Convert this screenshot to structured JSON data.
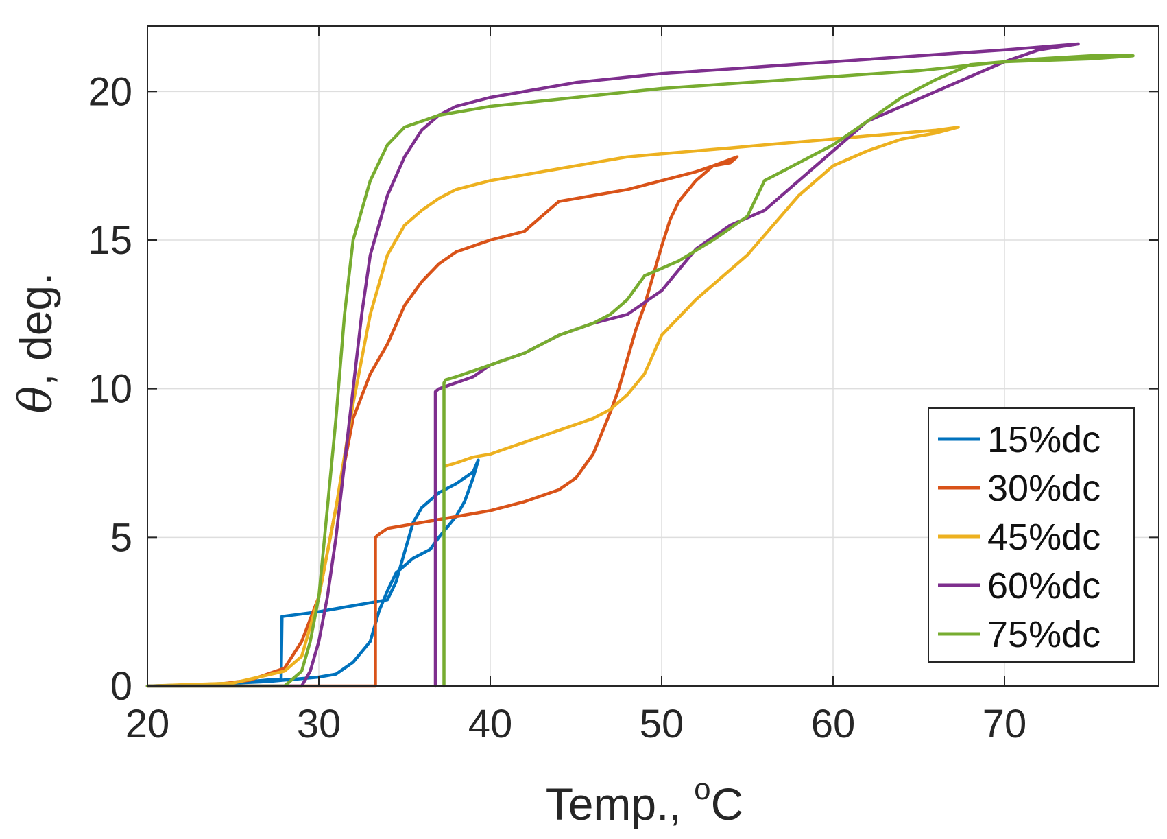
{
  "chart_data": {
    "type": "line",
    "title": "",
    "xlabel": "Temp., ",
    "xlabel_unit_sup": "o",
    "xlabel_unit": "C",
    "ylabel_symbol": "θ",
    "ylabel_rest": ", deg.",
    "xlim": [
      20,
      79
    ],
    "ylim": [
      0,
      22.2
    ],
    "xticks": [
      20,
      30,
      40,
      50,
      60,
      70
    ],
    "yticks": [
      0,
      5,
      10,
      15,
      20
    ],
    "grid": true,
    "legend_position": "bottom-right",
    "series": [
      {
        "name": "15%dc",
        "color": "#0072BD",
        "x": [
          20,
          22,
          24,
          25,
          26,
          27,
          27.8,
          27.85,
          28,
          30,
          32,
          33,
          34,
          34.5,
          35,
          35.5,
          36,
          37,
          38,
          39,
          39.3,
          39,
          38.5,
          38,
          37,
          36.5,
          35.5,
          34.5,
          34,
          33.5,
          33,
          32,
          31,
          30,
          29,
          28,
          27,
          25,
          23,
          20
        ],
        "y": [
          0,
          0,
          0.05,
          0.1,
          0.15,
          0.2,
          0.2,
          2.35,
          2.35,
          2.5,
          2.7,
          2.8,
          2.9,
          3.5,
          4.5,
          5.5,
          6.0,
          6.5,
          6.8,
          7.2,
          7.6,
          7.0,
          6.2,
          5.7,
          5.0,
          4.6,
          4.3,
          3.8,
          3.2,
          2.5,
          1.5,
          0.8,
          0.4,
          0.3,
          0.25,
          0.2,
          0.15,
          0.1,
          0.05,
          0
        ]
      },
      {
        "name": "30%dc",
        "color": "#D95319",
        "x": [
          20,
          26,
          28,
          30,
          31,
          32,
          33,
          33.3,
          33.3,
          33.5,
          34,
          36,
          38,
          40,
          42,
          44,
          45,
          46,
          46.5,
          47,
          47.5,
          48,
          48.5,
          49,
          49.5,
          50,
          50.5,
          51,
          52,
          53,
          54,
          54.4,
          53,
          52,
          50,
          48,
          46,
          44,
          43,
          42,
          40,
          38,
          37,
          36,
          35,
          34,
          33,
          32,
          31,
          30,
          29,
          28,
          26,
          24,
          20
        ],
        "y": [
          0,
          0,
          0,
          0,
          0,
          0,
          0,
          0,
          5.0,
          5.1,
          5.3,
          5.5,
          5.7,
          5.9,
          6.2,
          6.6,
          7.0,
          7.8,
          8.5,
          9.2,
          10.0,
          11.0,
          12.0,
          12.8,
          13.8,
          14.8,
          15.7,
          16.3,
          17.0,
          17.5,
          17.6,
          17.8,
          17.5,
          17.3,
          17.0,
          16.7,
          16.5,
          16.3,
          15.8,
          15.3,
          15.0,
          14.6,
          14.2,
          13.6,
          12.8,
          11.5,
          10.5,
          9.0,
          6.0,
          3.0,
          1.5,
          0.6,
          0.2,
          0.05,
          0
        ]
      },
      {
        "name": "45%dc",
        "color": "#EDB120",
        "x": [
          20,
          25,
          28,
          29,
          30,
          31,
          32,
          33,
          34,
          35,
          36,
          37,
          38,
          40,
          42,
          44,
          46,
          48,
          50,
          52,
          54,
          56,
          58,
          60,
          62,
          64,
          66,
          67.3,
          66,
          64,
          62,
          60,
          58,
          55,
          52,
          50,
          49,
          48,
          47,
          46,
          45,
          44,
          43,
          42,
          41,
          40,
          39,
          38,
          37.4
        ],
        "y": [
          0,
          0.1,
          0.5,
          1.0,
          3.0,
          6.0,
          9.5,
          12.5,
          14.5,
          15.5,
          16.0,
          16.4,
          16.7,
          17.0,
          17.2,
          17.4,
          17.6,
          17.8,
          17.9,
          18.0,
          18.1,
          18.2,
          18.3,
          18.4,
          18.5,
          18.6,
          18.7,
          18.8,
          18.6,
          18.4,
          18.0,
          17.5,
          16.5,
          14.5,
          13.0,
          11.8,
          10.5,
          9.8,
          9.3,
          9.0,
          8.8,
          8.6,
          8.4,
          8.2,
          8.0,
          7.8,
          7.7,
          7.5,
          7.4
        ]
      },
      {
        "name": "60%dc",
        "color": "#7E2F8E",
        "x": [
          20,
          28,
          29,
          29.5,
          30,
          30.5,
          31,
          31.5,
          32,
          32.5,
          33,
          34,
          35,
          36,
          37,
          38,
          40,
          45,
          50,
          55,
          60,
          65,
          70,
          74.3,
          72,
          70,
          68,
          66,
          64,
          62,
          60,
          58,
          56,
          54,
          52,
          51,
          50,
          48,
          46,
          44,
          42,
          40,
          39,
          38,
          37,
          36.8,
          36.8
        ],
        "y": [
          0,
          0,
          0,
          0.5,
          1.5,
          3.0,
          5.0,
          7.5,
          10.0,
          12.5,
          14.5,
          16.5,
          17.8,
          18.7,
          19.2,
          19.5,
          19.8,
          20.3,
          20.6,
          20.8,
          21.0,
          21.2,
          21.4,
          21.6,
          21.4,
          21.0,
          20.5,
          20.0,
          19.5,
          19.0,
          18.0,
          17.0,
          16.0,
          15.5,
          14.7,
          14.0,
          13.3,
          12.5,
          12.2,
          11.8,
          11.2,
          10.8,
          10.4,
          10.2,
          10.0,
          9.9,
          0
        ]
      },
      {
        "name": "75%dc",
        "color": "#77AC30",
        "x": [
          20,
          28,
          29,
          29.5,
          30,
          30.5,
          31,
          31.5,
          32,
          33,
          34,
          35,
          36,
          37,
          38,
          40,
          45,
          50,
          55,
          60,
          65,
          70,
          75,
          77.5,
          75,
          72,
          70,
          68,
          66,
          64,
          62,
          60,
          58,
          56,
          55,
          53,
          51,
          49,
          48,
          47,
          46,
          44,
          42,
          40,
          39,
          38,
          37.4,
          37.3,
          37.3
        ],
        "y": [
          0,
          0,
          0.5,
          1.5,
          3.0,
          6.0,
          9.0,
          12.5,
          15.0,
          17.0,
          18.2,
          18.8,
          19.0,
          19.2,
          19.3,
          19.5,
          19.8,
          20.1,
          20.3,
          20.5,
          20.7,
          21.0,
          21.1,
          21.2,
          21.2,
          21.1,
          21.0,
          20.9,
          20.4,
          19.8,
          19.0,
          18.2,
          17.6,
          17.0,
          15.8,
          15.0,
          14.3,
          13.8,
          13.0,
          12.5,
          12.2,
          11.8,
          11.2,
          10.8,
          10.6,
          10.4,
          10.3,
          10.2,
          0
        ]
      }
    ]
  }
}
